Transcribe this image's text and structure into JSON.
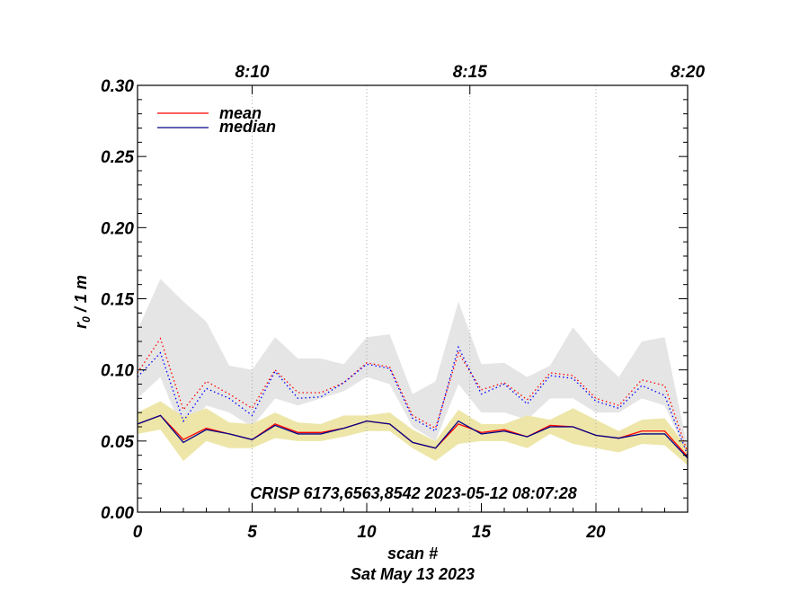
{
  "chart_data": {
    "type": "line",
    "title": "",
    "annotation": "CRISP 6173,6563,8542 2023-05-12 08:07:28",
    "xlabel": "scan #",
    "date_label": "Sat May 13 2023",
    "ylabel_main": "r",
    "ylabel_sub": "0",
    "ylabel_rest": " / 1 m",
    "xlim": [
      0,
      24
    ],
    "ylim": [
      0,
      0.3
    ],
    "x_ticks": [
      {
        "value": 0,
        "label": "0"
      },
      {
        "value": 5,
        "label": "5"
      },
      {
        "value": 10,
        "label": "10"
      },
      {
        "value": 15,
        "label": "15"
      },
      {
        "value": 20,
        "label": "20"
      }
    ],
    "y_ticks": [
      {
        "value": 0.0,
        "label": "0.00"
      },
      {
        "value": 0.05,
        "label": "0.05"
      },
      {
        "value": 0.1,
        "label": "0.10"
      },
      {
        "value": 0.15,
        "label": "0.15"
      },
      {
        "value": 0.2,
        "label": "0.20"
      },
      {
        "value": 0.25,
        "label": "0.25"
      },
      {
        "value": 0.3,
        "label": "0.30"
      }
    ],
    "top_ticks": [
      {
        "value": 5,
        "label": "8:10"
      },
      {
        "value": 14.5,
        "label": "8:15"
      },
      {
        "value": 24,
        "label": "8:20"
      }
    ],
    "vgrid": [
      5,
      10,
      14.5,
      20
    ],
    "x": [
      0,
      1,
      2,
      3,
      4,
      5,
      6,
      7,
      8,
      9,
      10,
      11,
      12,
      13,
      14,
      15,
      16,
      17,
      18,
      19,
      20,
      21,
      22,
      23,
      24
    ],
    "upper_band": {
      "name": "upper range",
      "color": "#e5e5e5",
      "low": [
        0.08,
        0.095,
        0.055,
        0.075,
        0.07,
        0.06,
        0.08,
        0.075,
        0.08,
        0.085,
        0.095,
        0.09,
        0.06,
        0.05,
        0.09,
        0.07,
        0.07,
        0.065,
        0.08,
        0.08,
        0.07,
        0.07,
        0.08,
        0.075,
        0.04
      ],
      "high": [
        0.128,
        0.164,
        0.148,
        0.134,
        0.103,
        0.1,
        0.123,
        0.108,
        0.108,
        0.104,
        0.123,
        0.125,
        0.083,
        0.092,
        0.148,
        0.104,
        0.105,
        0.095,
        0.103,
        0.13,
        0.11,
        0.095,
        0.12,
        0.123,
        0.045
      ]
    },
    "lower_band": {
      "name": "lower range",
      "color": "#ede6a8",
      "low": [
        0.055,
        0.058,
        0.036,
        0.05,
        0.045,
        0.045,
        0.052,
        0.05,
        0.05,
        0.053,
        0.057,
        0.057,
        0.045,
        0.036,
        0.048,
        0.05,
        0.05,
        0.045,
        0.055,
        0.048,
        0.045,
        0.042,
        0.048,
        0.047,
        0.033
      ],
      "high": [
        0.07,
        0.078,
        0.067,
        0.073,
        0.063,
        0.062,
        0.07,
        0.063,
        0.062,
        0.068,
        0.068,
        0.07,
        0.058,
        0.05,
        0.072,
        0.062,
        0.062,
        0.068,
        0.065,
        0.073,
        0.065,
        0.057,
        0.065,
        0.066,
        0.045
      ]
    },
    "series": [
      {
        "name": "mean",
        "legend": true,
        "color": "#ff0000",
        "dash": "none",
        "values": [
          0.062,
          0.068,
          0.051,
          0.059,
          0.055,
          0.051,
          0.062,
          0.056,
          0.056,
          0.059,
          0.064,
          0.062,
          0.049,
          0.045,
          0.062,
          0.056,
          0.058,
          0.053,
          0.061,
          0.06,
          0.054,
          0.052,
          0.057,
          0.057,
          0.039
        ]
      },
      {
        "name": "median",
        "legend": true,
        "color": "#00008b",
        "dash": "none",
        "values": [
          0.062,
          0.068,
          0.049,
          0.058,
          0.055,
          0.051,
          0.061,
          0.055,
          0.055,
          0.059,
          0.064,
          0.062,
          0.049,
          0.045,
          0.064,
          0.055,
          0.057,
          0.053,
          0.06,
          0.06,
          0.054,
          0.052,
          0.055,
          0.055,
          0.038
        ]
      },
      {
        "name": "mean (dotted)",
        "legend": false,
        "color": "#ff0000",
        "dash": "1.5 3",
        "values": [
          0.098,
          0.122,
          0.072,
          0.092,
          0.083,
          0.073,
          0.1,
          0.084,
          0.084,
          0.091,
          0.105,
          0.102,
          0.068,
          0.059,
          0.112,
          0.086,
          0.091,
          0.079,
          0.098,
          0.096,
          0.08,
          0.075,
          0.093,
          0.089,
          0.042
        ]
      },
      {
        "name": "median (dotted)",
        "legend": false,
        "color": "#0000ff",
        "dash": "1.5 3",
        "values": [
          0.095,
          0.112,
          0.064,
          0.087,
          0.08,
          0.068,
          0.099,
          0.08,
          0.081,
          0.091,
          0.104,
          0.101,
          0.066,
          0.057,
          0.116,
          0.083,
          0.09,
          0.076,
          0.096,
          0.094,
          0.078,
          0.073,
          0.089,
          0.082,
          0.04
        ]
      }
    ]
  }
}
